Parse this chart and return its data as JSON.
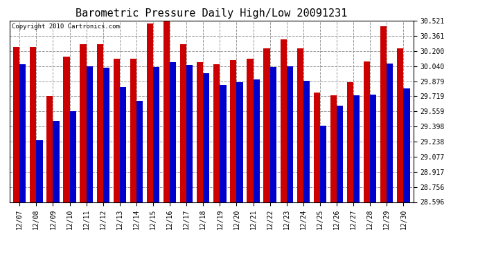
{
  "title": "Barometric Pressure Daily High/Low 20091231",
  "copyright": "Copyright 2010 Cartronics.com",
  "dates": [
    "12/07",
    "12/08",
    "12/09",
    "12/10",
    "12/11",
    "12/12",
    "12/13",
    "12/14",
    "12/15",
    "12/16",
    "12/17",
    "12/18",
    "12/19",
    "12/20",
    "12/21",
    "12/22",
    "12/23",
    "12/24",
    "12/25",
    "12/26",
    "12/27",
    "12/28",
    "12/29",
    "12/30"
  ],
  "highs": [
    30.24,
    30.24,
    29.72,
    30.14,
    30.27,
    30.27,
    30.12,
    30.12,
    30.49,
    30.51,
    30.27,
    30.08,
    30.06,
    30.1,
    30.12,
    30.23,
    30.32,
    30.23,
    29.76,
    29.73,
    29.87,
    30.09,
    30.46,
    30.23
  ],
  "lows": [
    30.06,
    29.25,
    29.46,
    29.56,
    30.04,
    30.02,
    29.82,
    29.67,
    30.03,
    30.08,
    30.05,
    29.96,
    29.84,
    29.87,
    29.9,
    30.03,
    30.04,
    29.88,
    29.41,
    29.62,
    29.73,
    29.74,
    30.07,
    29.8
  ],
  "ymin": 28.596,
  "ymax": 30.521,
  "yticks": [
    30.521,
    30.361,
    30.2,
    30.04,
    29.879,
    29.719,
    29.559,
    29.398,
    29.238,
    29.077,
    28.917,
    28.756,
    28.596
  ],
  "bar_width": 0.38,
  "high_color": "#cc0000",
  "low_color": "#0000cc",
  "bg_color": "#ffffff",
  "grid_color": "#999999",
  "title_fontsize": 11,
  "tick_fontsize": 7,
  "copyright_fontsize": 6.5
}
